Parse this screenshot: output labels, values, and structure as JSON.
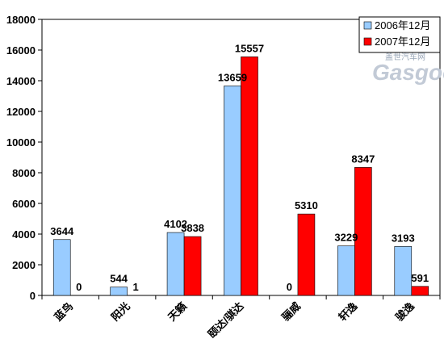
{
  "chart_data": {
    "type": "bar",
    "categories": [
      "蓝鸟",
      "阳光",
      "天籁",
      "颐达/骐达",
      "骊威",
      "轩逸",
      "骏逸"
    ],
    "series": [
      {
        "name": "2006年12月",
        "values": [
          3644,
          544,
          4102,
          13659,
          0,
          3229,
          3193
        ],
        "color": "#99ccff"
      },
      {
        "name": "2007年12月",
        "values": [
          0,
          1,
          3838,
          15557,
          5310,
          8347,
          591
        ],
        "color": "#ff0000"
      }
    ],
    "yticks": [
      0,
      2000,
      4000,
      6000,
      8000,
      10000,
      12000,
      14000,
      16000,
      18000
    ],
    "ylim": [
      0,
      18000
    ],
    "grid": false,
    "legend_position": "top-right",
    "watermark": {
      "line1": "盖世汽车网",
      "line2": "Gasgoo"
    }
  }
}
